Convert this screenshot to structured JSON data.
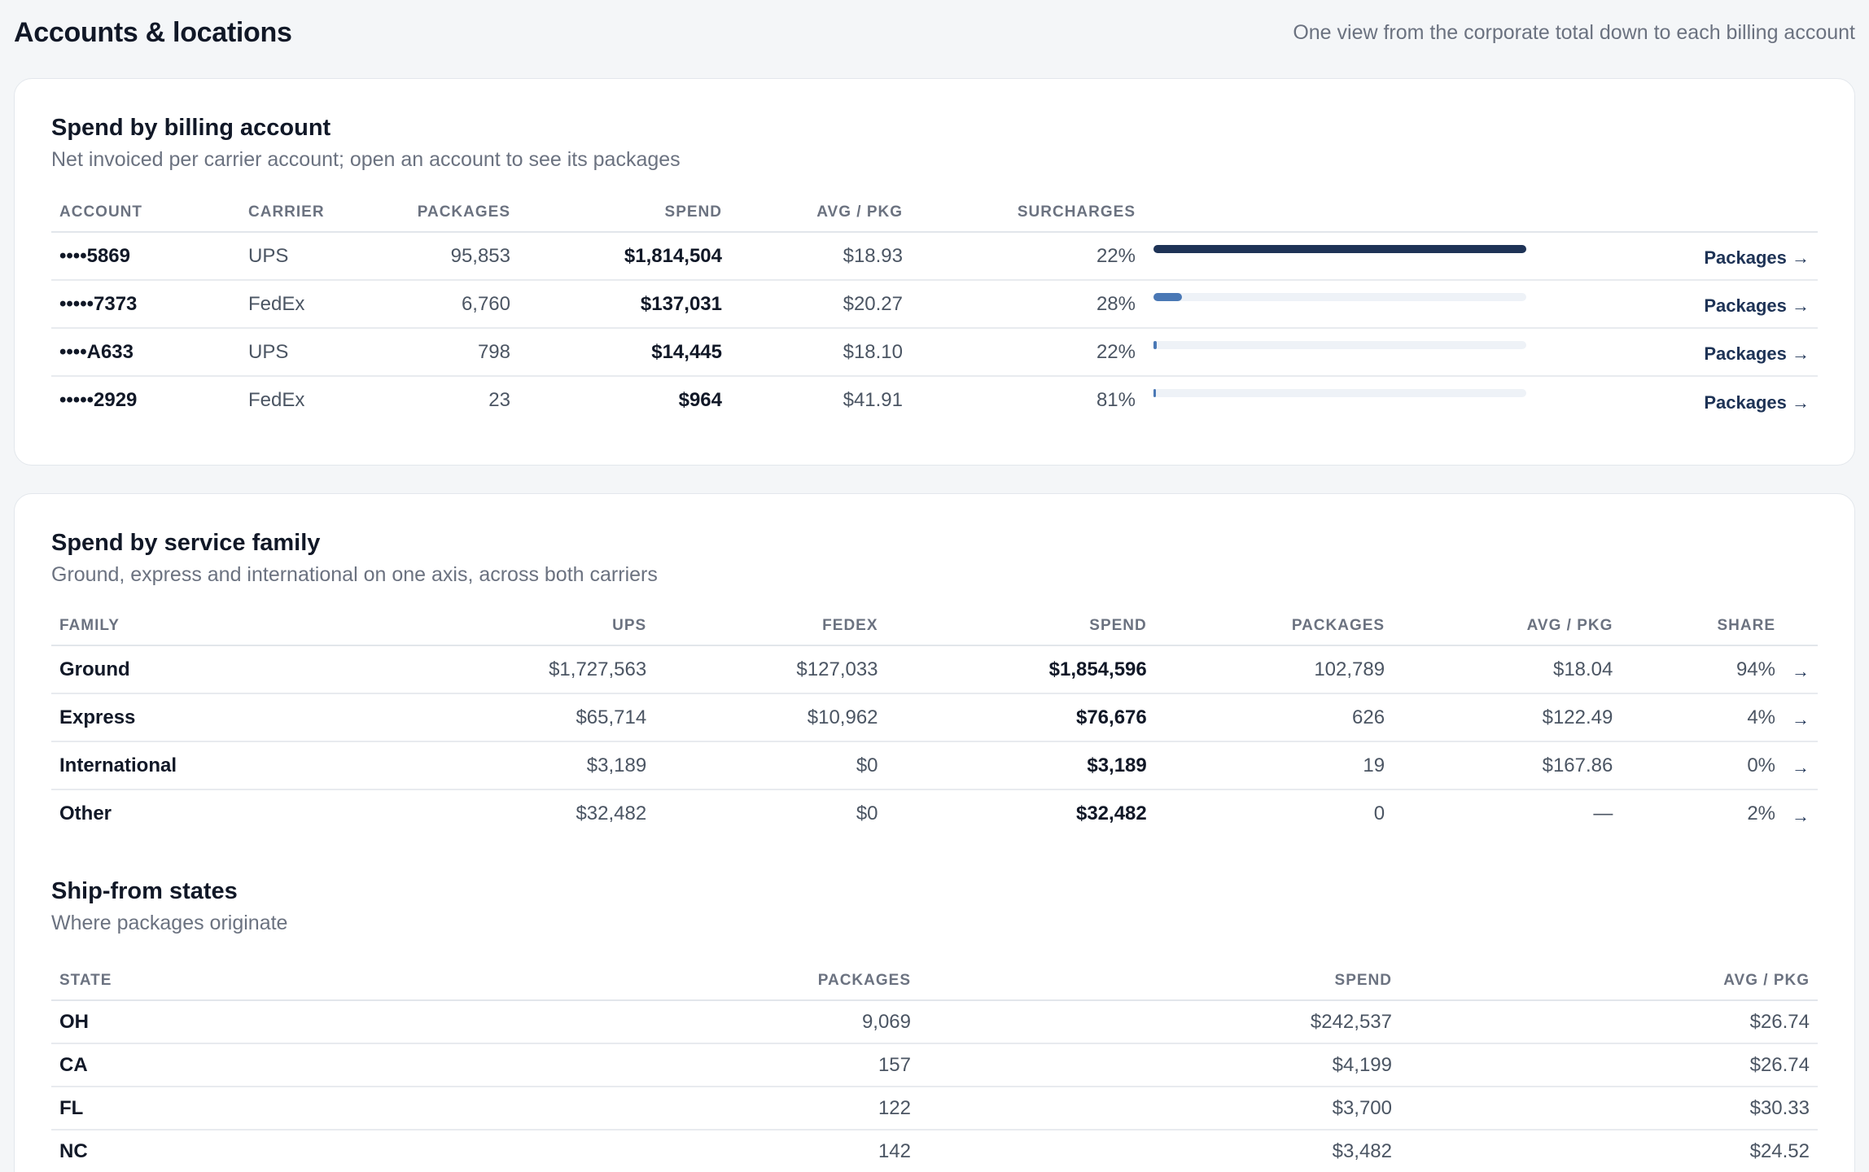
{
  "header": {
    "title": "Accounts & locations",
    "subtitle": "One view from the corporate total down to each billing account"
  },
  "billing": {
    "title": "Spend by billing account",
    "subtitle": "Net invoiced per carrier account; open an account to see its packages",
    "columns": [
      "ACCOUNT",
      "CARRIER",
      "PACKAGES",
      "SPEND",
      "AVG / PKG",
      "SURCHARGES"
    ],
    "rows": [
      {
        "account": "••••5869",
        "carrier": "UPS",
        "packages": "95,853",
        "spend": "$1,814,504",
        "avg": "$18.93",
        "surcharges": "22%",
        "share": 1.0,
        "bar_color": "#1e3356",
        "link": "Packages →"
      },
      {
        "account": "•••••7373",
        "carrier": "FedEx",
        "packages": "6,760",
        "spend": "$137,031",
        "avg": "$20.27",
        "surcharges": "28%",
        "share": 0.0755,
        "bar_color": "#4a78b5",
        "link": "Packages →"
      },
      {
        "account": "••••A633",
        "carrier": "UPS",
        "packages": "798",
        "spend": "$14,445",
        "avg": "$18.10",
        "surcharges": "22%",
        "share": 0.008,
        "bar_color": "#4a78b5",
        "link": "Packages →"
      },
      {
        "account": "•••••2929",
        "carrier": "FedEx",
        "packages": "23",
        "spend": "$964",
        "avg": "$41.91",
        "surcharges": "81%",
        "share": 0.0005,
        "bar_color": "#4a78b5",
        "link": "Packages →"
      }
    ]
  },
  "service": {
    "title": "Spend by service family",
    "subtitle": "Ground, express and international on one axis, across both carriers",
    "columns": [
      "FAMILY",
      "UPS",
      "FEDEX",
      "SPEND",
      "PACKAGES",
      "AVG / PKG",
      "SHARE"
    ],
    "rows": [
      {
        "family": "Ground",
        "ups": "$1,727,563",
        "fedex": "$127,033",
        "spend": "$1,854,596",
        "packages": "102,789",
        "avg": "$18.04",
        "share": "94%",
        "arrow": "→"
      },
      {
        "family": "Express",
        "ups": "$65,714",
        "fedex": "$10,962",
        "spend": "$76,676",
        "packages": "626",
        "avg": "$122.49",
        "share": "4%",
        "arrow": "→"
      },
      {
        "family": "International",
        "ups": "$3,189",
        "fedex": "$0",
        "spend": "$3,189",
        "packages": "19",
        "avg": "$167.86",
        "share": "0%",
        "arrow": "→"
      },
      {
        "family": "Other",
        "ups": "$32,482",
        "fedex": "$0",
        "spend": "$32,482",
        "packages": "0",
        "avg": "—",
        "share": "2%",
        "arrow": "→"
      }
    ]
  },
  "states": {
    "title": "Ship-from states",
    "subtitle": "Where packages originate",
    "columns": [
      "STATE",
      "PACKAGES",
      "SPEND",
      "AVG / PKG"
    ],
    "rows": [
      {
        "state": "OH",
        "packages": "9,069",
        "spend": "$242,537",
        "avg": "$26.74"
      },
      {
        "state": "CA",
        "packages": "157",
        "spend": "$4,199",
        "avg": "$26.74"
      },
      {
        "state": "FL",
        "packages": "122",
        "spend": "$3,700",
        "avg": "$30.33"
      },
      {
        "state": "NC",
        "packages": "142",
        "spend": "$3,482",
        "avg": "$24.52"
      }
    ]
  }
}
